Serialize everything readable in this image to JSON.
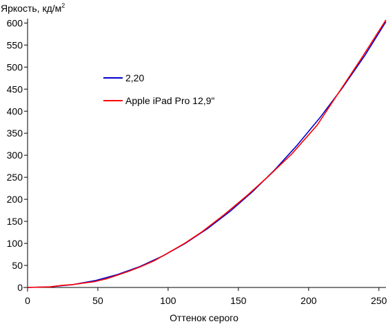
{
  "chart_data": {
    "type": "line",
    "ylabel": "Яркость, кд/м",
    "ylabel_sup": "2",
    "xlabel": "Оттенок серого",
    "xlim": [
      0,
      255
    ],
    "ylim": [
      0,
      610
    ],
    "x_ticks": [
      0,
      50,
      100,
      150,
      200,
      250
    ],
    "y_ticks": [
      0,
      50,
      100,
      150,
      200,
      250,
      300,
      350,
      400,
      450,
      500,
      550,
      600
    ],
    "grid": false,
    "legend_position": "upper-left-inside",
    "series": [
      {
        "name": "2,20",
        "color": "#0000cc",
        "x": [
          0,
          16,
          32,
          48,
          64,
          80,
          96,
          112,
          128,
          144,
          160,
          176,
          192,
          208,
          224,
          240,
          255
        ],
        "y": [
          0,
          1.4,
          6.4,
          15.5,
          29.2,
          47.6,
          71.1,
          99.6,
          133.4,
          172.4,
          217.1,
          267.3,
          323.3,
          385.1,
          452.8,
          526.5,
          603.0
        ]
      },
      {
        "name": "Apple iPad Pro 12,9\"",
        "color": "#ff0000",
        "x": [
          0,
          16,
          24,
          32,
          48,
          56,
          64,
          72,
          80,
          90,
          100,
          112,
          124,
          140,
          156,
          172,
          188,
          206,
          222,
          238,
          255
        ],
        "y": [
          0,
          1.2,
          4.6,
          6.5,
          13.4,
          19.5,
          28.0,
          36.8,
          46.5,
          60.4,
          78.5,
          100.5,
          126.0,
          165.5,
          208.0,
          254.0,
          303.0,
          368.0,
          445.0,
          522.0,
          607.0
        ]
      }
    ]
  }
}
